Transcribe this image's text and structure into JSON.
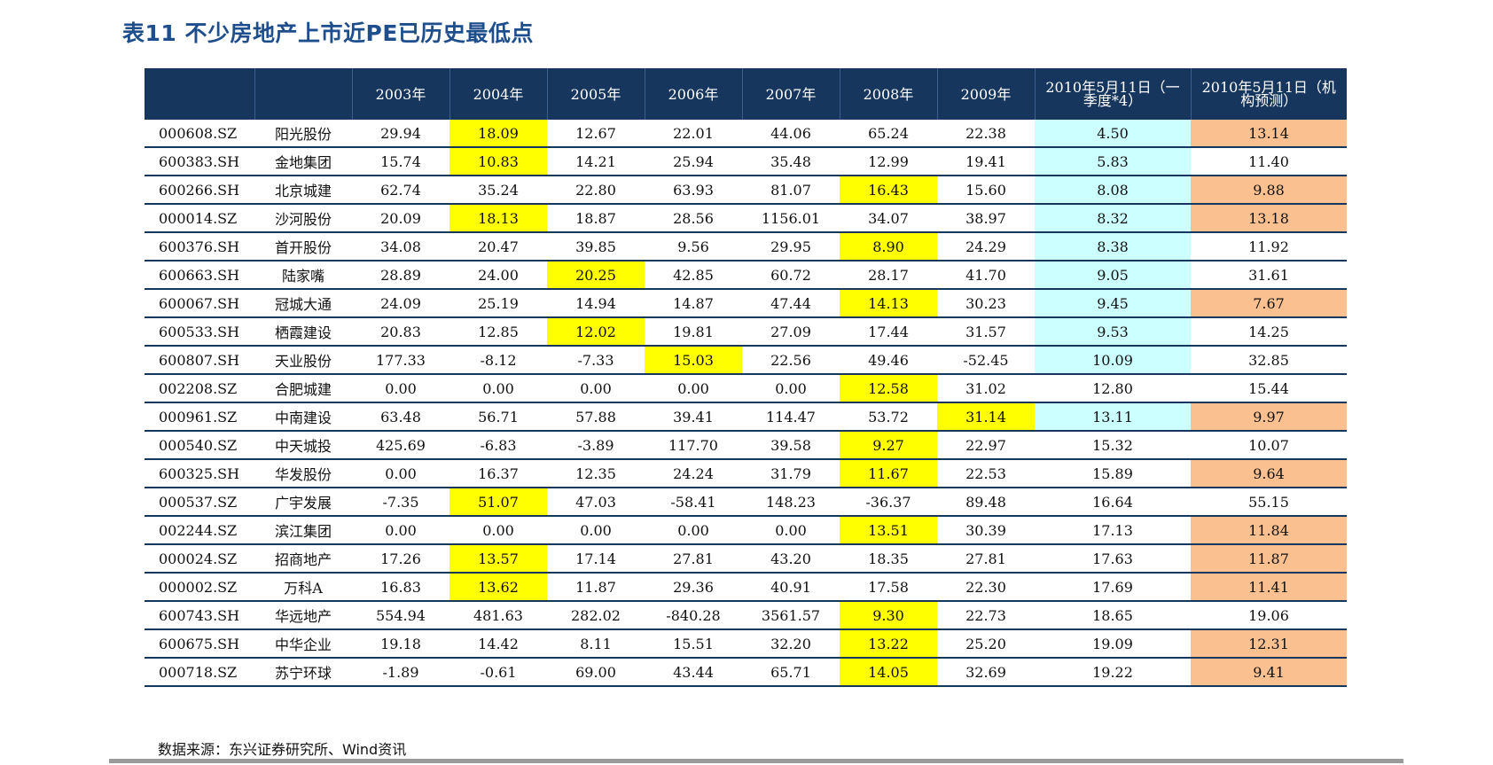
{
  "title": "表11  不少房地产上市近PE已历史最低点",
  "columns": [
    "",
    "",
    "2003年",
    "2004年",
    "2005年",
    "2006年",
    "2007年",
    "2008年",
    "2009年",
    "2010年5月11日（一季度*4）",
    "2010年5月11日（机构预测）"
  ],
  "rows": [
    {
      "code": "000608.SZ",
      "name": "阳光股份",
      "values": [
        "29.94",
        "18.09",
        "12.67",
        "22.01",
        "44.06",
        "65.24",
        "22.38",
        "4.50",
        "13.14"
      ],
      "hl": [
        [
          1,
          "yellow"
        ],
        [
          7,
          "cyan"
        ],
        [
          8,
          "orange"
        ]
      ]
    },
    {
      "code": "600383.SH",
      "name": "金地集团",
      "values": [
        "15.74",
        "10.83",
        "14.21",
        "25.94",
        "35.48",
        "12.99",
        "19.41",
        "5.83",
        "11.40"
      ],
      "hl": [
        [
          1,
          "yellow"
        ],
        [
          7,
          "cyan"
        ]
      ]
    },
    {
      "code": "600266.SH",
      "name": "北京城建",
      "values": [
        "62.74",
        "35.24",
        "22.80",
        "63.93",
        "81.07",
        "16.43",
        "15.60",
        "8.08",
        "9.88"
      ],
      "hl": [
        [
          5,
          "yellow"
        ],
        [
          7,
          "cyan"
        ],
        [
          8,
          "orange"
        ]
      ]
    },
    {
      "code": "000014.SZ",
      "name": "沙河股份",
      "values": [
        "20.09",
        "18.13",
        "18.87",
        "28.56",
        "1156.01",
        "34.07",
        "38.97",
        "8.32",
        "13.18"
      ],
      "hl": [
        [
          1,
          "yellow"
        ],
        [
          7,
          "cyan"
        ],
        [
          8,
          "orange"
        ]
      ]
    },
    {
      "code": "600376.SH",
      "name": "首开股份",
      "values": [
        "34.08",
        "20.47",
        "39.85",
        "9.56",
        "29.95",
        "8.90",
        "24.29",
        "8.38",
        "11.92"
      ],
      "hl": [
        [
          5,
          "yellow"
        ],
        [
          7,
          "cyan"
        ]
      ]
    },
    {
      "code": "600663.SH",
      "name": "陆家嘴",
      "values": [
        "28.89",
        "24.00",
        "20.25",
        "42.85",
        "60.72",
        "28.17",
        "41.70",
        "9.05",
        "31.61"
      ],
      "hl": [
        [
          2,
          "yellow"
        ],
        [
          7,
          "cyan"
        ]
      ]
    },
    {
      "code": "600067.SH",
      "name": "冠城大通",
      "values": [
        "24.09",
        "25.19",
        "14.94",
        "14.87",
        "47.44",
        "14.13",
        "30.23",
        "9.45",
        "7.67"
      ],
      "hl": [
        [
          5,
          "yellow"
        ],
        [
          7,
          "cyan"
        ],
        [
          8,
          "orange"
        ]
      ]
    },
    {
      "code": "600533.SH",
      "name": "栖霞建设",
      "values": [
        "20.83",
        "12.85",
        "12.02",
        "19.81",
        "27.09",
        "17.44",
        "31.57",
        "9.53",
        "14.25"
      ],
      "hl": [
        [
          2,
          "yellow"
        ],
        [
          7,
          "cyan"
        ]
      ]
    },
    {
      "code": "600807.SH",
      "name": "天业股份",
      "values": [
        "177.33",
        "-8.12",
        "-7.33",
        "15.03",
        "22.56",
        "49.46",
        "-52.45",
        "10.09",
        "32.85"
      ],
      "hl": [
        [
          3,
          "yellow"
        ],
        [
          7,
          "cyan"
        ]
      ]
    },
    {
      "code": "002208.SZ",
      "name": "合肥城建",
      "values": [
        "0.00",
        "0.00",
        "0.00",
        "0.00",
        "0.00",
        "12.58",
        "31.02",
        "12.80",
        "15.44"
      ],
      "hl": [
        [
          5,
          "yellow"
        ]
      ]
    },
    {
      "code": "000961.SZ",
      "name": "中南建设",
      "values": [
        "63.48",
        "56.71",
        "57.88",
        "39.41",
        "114.47",
        "53.72",
        "31.14",
        "13.11",
        "9.97"
      ],
      "hl": [
        [
          6,
          "yellow"
        ],
        [
          7,
          "cyan"
        ],
        [
          8,
          "orange"
        ]
      ]
    },
    {
      "code": "000540.SZ",
      "name": "中天城投",
      "values": [
        "425.69",
        "-6.83",
        "-3.89",
        "117.70",
        "39.58",
        "9.27",
        "22.97",
        "15.32",
        "10.07"
      ],
      "hl": [
        [
          5,
          "yellow"
        ]
      ]
    },
    {
      "code": "600325.SH",
      "name": "华发股份",
      "values": [
        "0.00",
        "16.37",
        "12.35",
        "24.24",
        "31.79",
        "11.67",
        "22.53",
        "15.89",
        "9.64"
      ],
      "hl": [
        [
          5,
          "yellow"
        ],
        [
          8,
          "orange"
        ]
      ]
    },
    {
      "code": "000537.SZ",
      "name": "广宇发展",
      "values": [
        "-7.35",
        "51.07",
        "47.03",
        "-58.41",
        "148.23",
        "-36.37",
        "89.48",
        "16.64",
        "55.15"
      ],
      "hl": [
        [
          1,
          "yellow"
        ]
      ]
    },
    {
      "code": "002244.SZ",
      "name": "滨江集团",
      "values": [
        "0.00",
        "0.00",
        "0.00",
        "0.00",
        "0.00",
        "13.51",
        "30.39",
        "17.13",
        "11.84"
      ],
      "hl": [
        [
          5,
          "yellow"
        ],
        [
          8,
          "orange"
        ]
      ]
    },
    {
      "code": "000024.SZ",
      "name": "招商地产",
      "values": [
        "17.26",
        "13.57",
        "17.14",
        "27.81",
        "43.20",
        "18.35",
        "27.81",
        "17.63",
        "11.87"
      ],
      "hl": [
        [
          1,
          "yellow"
        ],
        [
          8,
          "orange"
        ]
      ]
    },
    {
      "code": "000002.SZ",
      "name": "万科A",
      "values": [
        "16.83",
        "13.62",
        "11.87",
        "29.36",
        "40.91",
        "17.58",
        "22.30",
        "17.69",
        "11.41"
      ],
      "hl": [
        [
          1,
          "yellow"
        ],
        [
          8,
          "orange"
        ]
      ]
    },
    {
      "code": "600743.SH",
      "name": "华远地产",
      "values": [
        "554.94",
        "481.63",
        "282.02",
        "-840.28",
        "3561.57",
        "9.30",
        "22.73",
        "18.65",
        "19.06"
      ],
      "hl": [
        [
          5,
          "yellow"
        ]
      ]
    },
    {
      "code": "600675.SH",
      "name": "中华企业",
      "values": [
        "19.18",
        "14.42",
        "8.11",
        "15.51",
        "32.20",
        "13.22",
        "25.20",
        "19.09",
        "12.31"
      ],
      "hl": [
        [
          5,
          "yellow"
        ],
        [
          8,
          "orange"
        ]
      ]
    },
    {
      "code": "000718.SZ",
      "name": "苏宁环球",
      "values": [
        "-1.89",
        "-0.61",
        "69.00",
        "43.44",
        "65.71",
        "14.05",
        "32.69",
        "19.22",
        "9.41"
      ],
      "hl": [
        [
          5,
          "yellow"
        ],
        [
          8,
          "orange"
        ]
      ]
    }
  ],
  "source": "数据来源：东兴证券研究所、Wind资讯",
  "colors": {
    "header_bg": "#17365d",
    "yellow": "#ffff00",
    "cyan": "#ccffff",
    "orange": "#fac090",
    "title": "#1f4e8c"
  }
}
